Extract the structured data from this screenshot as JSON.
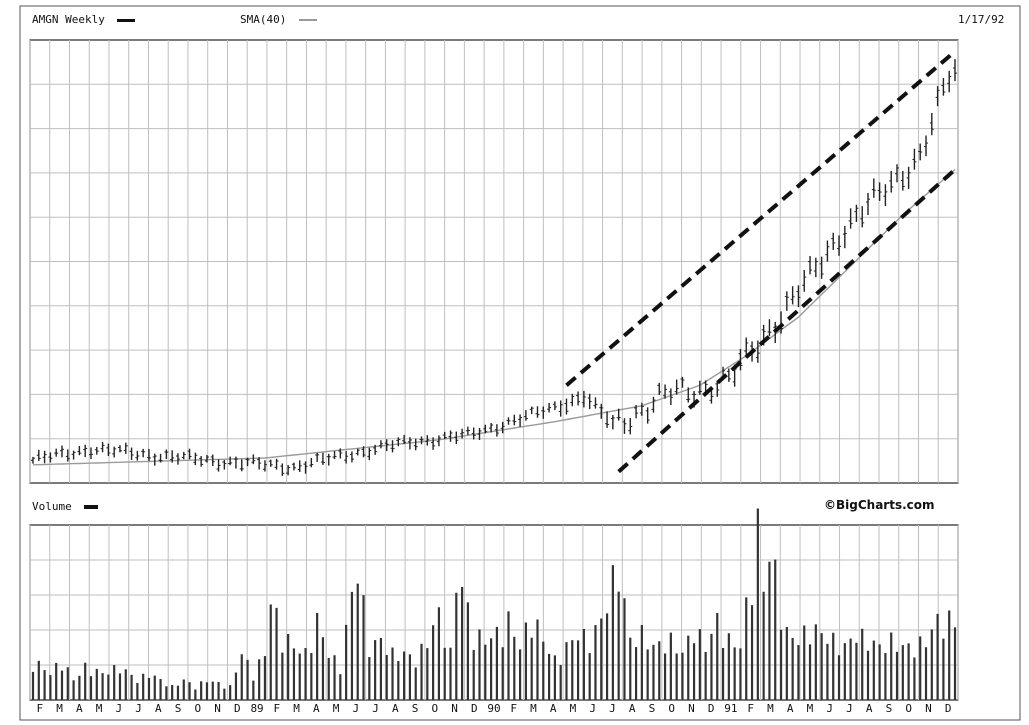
{
  "header": {
    "symbol_label": "AMGN Weekly",
    "sma_label": "SMA(40)",
    "date_label": "1/17/92"
  },
  "volume_panel": {
    "label": "Volume",
    "watermark": "©BigCharts.com"
  },
  "colors": {
    "price_bars": "#222222",
    "sma_line": "#9a9a9a",
    "volume_bars": "#333333",
    "grid": "#bfbfbf",
    "channel": "#111111"
  },
  "chart_data": [
    {
      "type": "line",
      "subtype": "ohlc-bars",
      "x_tick_labels": [
        "F",
        "M",
        "A",
        "M",
        "J",
        "J",
        "A",
        "S",
        "O",
        "N",
        "D",
        "89",
        "F",
        "M",
        "A",
        "M",
        "J",
        "J",
        "A",
        "S",
        "O",
        "N",
        "D",
        "90",
        "F",
        "M",
        "A",
        "M",
        "J",
        "J",
        "A",
        "S",
        "O",
        "N",
        "D",
        "91",
        "F",
        "M",
        "A",
        "M",
        "J",
        "J",
        "A",
        "S",
        "O",
        "N",
        "D"
      ],
      "weeks": 160,
      "series": [
        {
          "name": "AMGN Weekly",
          "anchors": [
            [
              0,
              0.0
            ],
            [
              10,
              0.5
            ],
            [
              30,
              0.0
            ],
            [
              45,
              -0.3
            ],
            [
              55,
              0.3
            ],
            [
              65,
              0.8
            ],
            [
              75,
              1.1
            ],
            [
              85,
              1.9
            ],
            [
              95,
              2.8
            ],
            [
              100,
              1.6
            ],
            [
              110,
              2.9
            ],
            [
              120,
              3.5
            ],
            [
              126,
              5.5
            ],
            [
              134,
              8.0
            ],
            [
              140,
              10.3
            ],
            [
              146,
              11.6
            ],
            [
              153,
              13.5
            ],
            [
              158,
              16.8
            ],
            [
              159,
              17.0
            ]
          ]
        },
        {
          "name": "SMA(40)",
          "anchors": [
            [
              0,
              -0.2
            ],
            [
              40,
              0.1
            ],
            [
              70,
              0.9
            ],
            [
              90,
              1.7
            ],
            [
              105,
              2.4
            ],
            [
              115,
              3.3
            ],
            [
              123,
              4.6
            ],
            [
              132,
              6.3
            ],
            [
              142,
              8.8
            ],
            [
              150,
              10.8
            ],
            [
              159,
              12.8
            ]
          ]
        }
      ],
      "channel_lines": [
        {
          "from": [
            92,
            3.3
          ],
          "to": [
            159,
            18.0
          ]
        },
        {
          "from": [
            101,
            -0.5
          ],
          "to": [
            159,
            12.8
          ]
        }
      ],
      "y_range": [
        -1,
        18.5
      ],
      "grid": true
    },
    {
      "type": "bar",
      "title": "Volume",
      "profile": [
        [
          0,
          6
        ],
        [
          3,
          4
        ],
        [
          5,
          6
        ],
        [
          7,
          3
        ],
        [
          9,
          5
        ],
        [
          12,
          4
        ],
        [
          15,
          5
        ],
        [
          18,
          3
        ],
        [
          20,
          4
        ],
        [
          24,
          2
        ],
        [
          26,
          3
        ],
        [
          28,
          2
        ],
        [
          30,
          3
        ],
        [
          34,
          2
        ],
        [
          36,
          7
        ],
        [
          38,
          4
        ],
        [
          40,
          7
        ],
        [
          41,
          15
        ],
        [
          43,
          10
        ],
        [
          45,
          8
        ],
        [
          47,
          7
        ],
        [
          49,
          12
        ],
        [
          51,
          7
        ],
        [
          53,
          5
        ],
        [
          55,
          16
        ],
        [
          56,
          20
        ],
        [
          58,
          8
        ],
        [
          60,
          9
        ],
        [
          62,
          7
        ],
        [
          64,
          7
        ],
        [
          66,
          6
        ],
        [
          68,
          9
        ],
        [
          70,
          13
        ],
        [
          72,
          7
        ],
        [
          73,
          18
        ],
        [
          74,
          17
        ],
        [
          76,
          10
        ],
        [
          78,
          9
        ],
        [
          80,
          10
        ],
        [
          82,
          12
        ],
        [
          84,
          8
        ],
        [
          86,
          13
        ],
        [
          88,
          9
        ],
        [
          90,
          6
        ],
        [
          92,
          8
        ],
        [
          94,
          10
        ],
        [
          96,
          9
        ],
        [
          98,
          12
        ],
        [
          100,
          18
        ],
        [
          101,
          20
        ],
        [
          103,
          9
        ],
        [
          105,
          10
        ],
        [
          107,
          8
        ],
        [
          110,
          9
        ],
        [
          112,
          7
        ],
        [
          114,
          11
        ],
        [
          116,
          8
        ],
        [
          118,
          12
        ],
        [
          120,
          9
        ],
        [
          122,
          8
        ],
        [
          125,
          26
        ],
        [
          126,
          17
        ],
        [
          127,
          22
        ],
        [
          128,
          19
        ],
        [
          130,
          10
        ],
        [
          132,
          9
        ],
        [
          134,
          11
        ],
        [
          136,
          10
        ],
        [
          138,
          9
        ],
        [
          140,
          8
        ],
        [
          142,
          10
        ],
        [
          144,
          9
        ],
        [
          146,
          8
        ],
        [
          148,
          9
        ],
        [
          150,
          8
        ],
        [
          152,
          8
        ],
        [
          154,
          9
        ],
        [
          156,
          12
        ],
        [
          159,
          12
        ]
      ],
      "grid": true
    }
  ]
}
